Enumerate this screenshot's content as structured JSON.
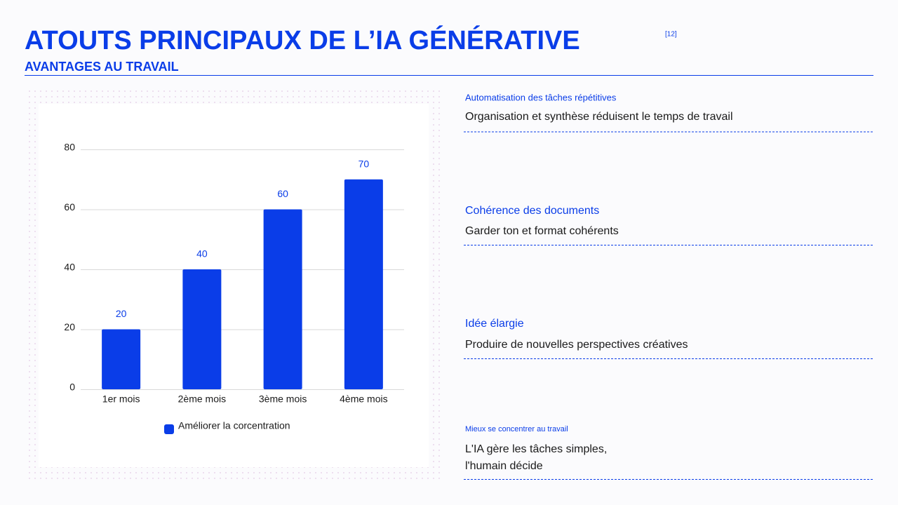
{
  "header": {
    "title": "ATOUTS PRINCIPAUX DE L’IA GÉNÉRATIVE",
    "reference": "[12]",
    "subtitle": "AVANTAGES AU TRAVAIL"
  },
  "chart_data": {
    "type": "bar",
    "categories": [
      "1er mois",
      "2ème mois",
      "3ème mois",
      "4ème mois"
    ],
    "series": [
      {
        "name": "Améliorer la corcentration",
        "color": "#0a3de8",
        "values": [
          20,
          40,
          60,
          70
        ]
      }
    ],
    "ylim": [
      0,
      80
    ],
    "yticks": [
      0,
      20,
      40,
      60,
      80
    ],
    "grid": true,
    "legend": "bottom"
  },
  "items": [
    {
      "title": "Automatisation des tâches répétitives",
      "body": [
        "Organisation et synthèse réduisent le temps de travail"
      ]
    },
    {
      "title": "Cohérence des documents",
      "body": [
        "Garder ton et format cohérents"
      ]
    },
    {
      "title": "Idée élargie",
      "body": [
        "Produire de nouvelles perspectives créatives"
      ]
    },
    {
      "title": "Mieux se concentrer au travail",
      "body": [
        "L'IA gère les tâches simples,",
        "l'humain décide"
      ]
    }
  ]
}
